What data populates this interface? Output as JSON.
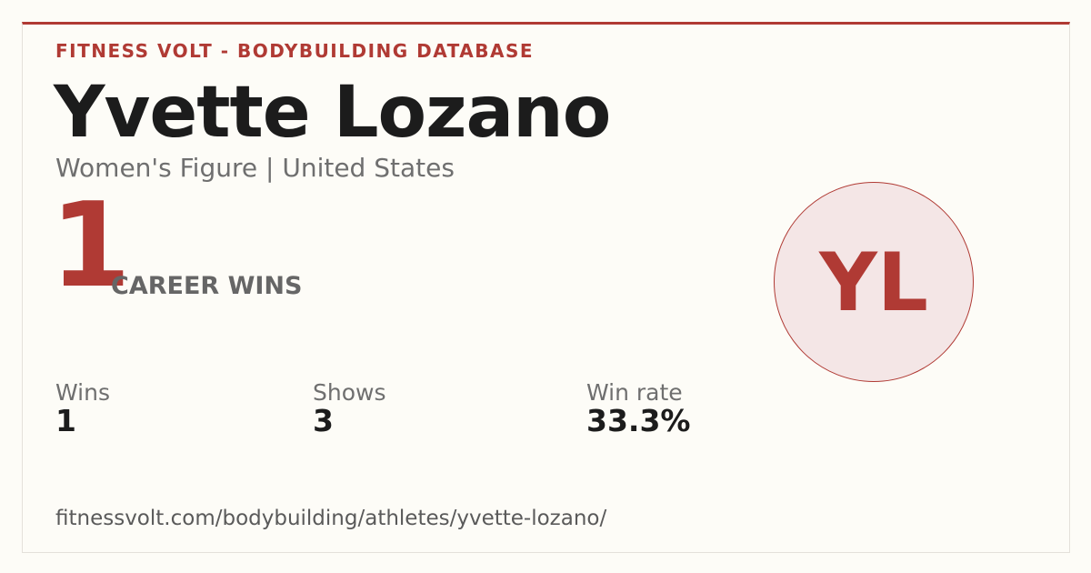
{
  "header": {
    "brand": "FITNESS VOLT - BODYBUILDING DATABASE",
    "name": "Yvette Lozano",
    "subtitle": "Women's Figure | United States"
  },
  "hero": {
    "number": "1",
    "label": "CAREER WINS"
  },
  "avatar": {
    "initials": "YL"
  },
  "stats": [
    {
      "label": "Wins",
      "value": "1"
    },
    {
      "label": "Shows",
      "value": "3"
    },
    {
      "label": "Win rate",
      "value": "33.3%"
    }
  ],
  "footer": {
    "url": "fitnessvolt.com/bodybuilding/athletes/yvette-lozano/"
  }
}
